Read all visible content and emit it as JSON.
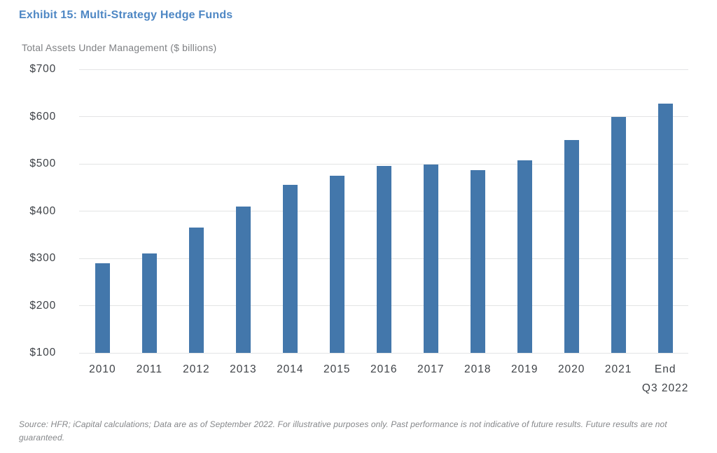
{
  "chart_data": {
    "type": "bar",
    "title": "Exhibit 15: Multi-Strategy Hedge Funds",
    "subtitle": "Total Assets Under Management ($ billions)",
    "categories": [
      "2010",
      "2011",
      "2012",
      "2013",
      "2014",
      "2015",
      "2016",
      "2017",
      "2018",
      "2019",
      "2020",
      "2021",
      "End\nQ3 2022"
    ],
    "values": [
      290,
      310,
      365,
      410,
      456,
      475,
      495,
      498,
      487,
      508,
      551,
      600,
      627
    ],
    "xlabel": "",
    "ylabel": "Total Assets Under Management ($ billions)",
    "ylim": [
      100,
      700
    ],
    "ytick_step": 100,
    "ytick_prefix": "$",
    "grid": true,
    "legend_position": "none",
    "bar_color": "#4377ab",
    "title_color": "#4e87c4",
    "tick_color": "#3e4247",
    "gridline_color": "#e3e4e5"
  },
  "footer": {
    "source_note": "Source: HFR; iCapital calculations; Data are as of September 2022. For illustrative purposes only. Past performance is not indicative of future results. Future results are not guaranteed."
  }
}
